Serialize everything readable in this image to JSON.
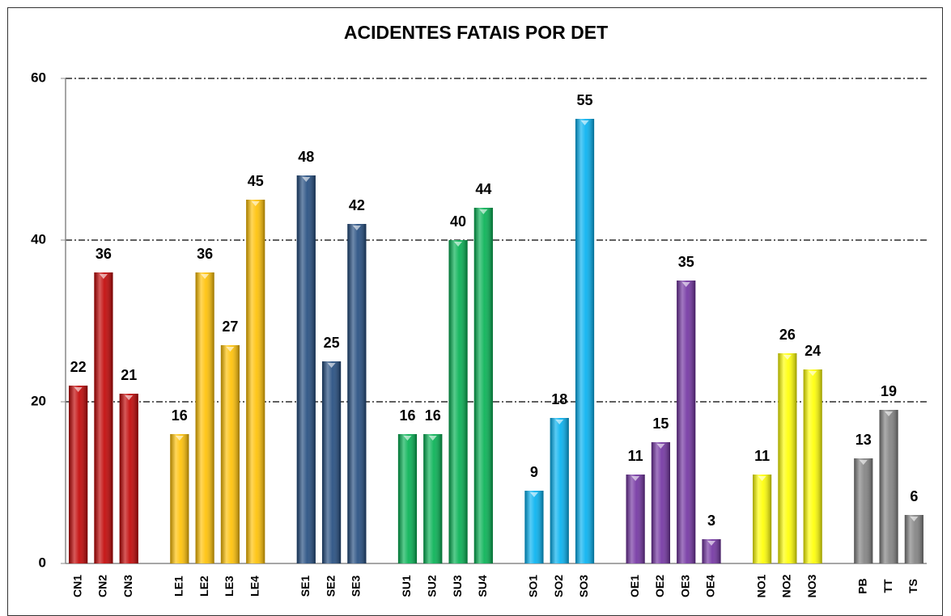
{
  "chart_data": {
    "type": "bar",
    "title": "ACIDENTES FATAIS POR DET",
    "categories": [
      "CN1",
      "CN2",
      "CN3",
      null,
      "LE1",
      "LE2",
      "LE3",
      "LE4",
      null,
      "SE1",
      "SE2",
      "SE3",
      null,
      "SU1",
      "SU2",
      "SU3",
      "SU4",
      null,
      "SO1",
      "SO2",
      "SO3",
      null,
      "OE1",
      "OE2",
      "OE3",
      "OE4",
      null,
      "NO1",
      "NO2",
      "NO3",
      null,
      "PB",
      "TT",
      "TS"
    ],
    "values": [
      22,
      36,
      21,
      null,
      16,
      36,
      27,
      45,
      null,
      48,
      25,
      42,
      null,
      16,
      16,
      40,
      44,
      null,
      9,
      18,
      55,
      null,
      11,
      15,
      35,
      3,
      null,
      11,
      26,
      24,
      null,
      13,
      19,
      6
    ],
    "colors": [
      "#c00000",
      "#c00000",
      "#c00000",
      null,
      "#ffc000",
      "#ffc000",
      "#ffc000",
      "#ffc000",
      null,
      "#1f497d",
      "#1f497d",
      "#1f497d",
      null,
      "#00b050",
      "#00b050",
      "#00b050",
      "#00b050",
      null,
      "#00b0f0",
      "#00b0f0",
      "#00b0f0",
      null,
      "#7030a0",
      "#7030a0",
      "#7030a0",
      "#7030a0",
      null,
      "#ffff00",
      "#ffff00",
      "#ffff00",
      null,
      "#808080",
      "#808080",
      "#808080"
    ],
    "ylim": [
      0,
      60
    ],
    "yticks": [
      0,
      20,
      40,
      60
    ],
    "grid": true
  }
}
